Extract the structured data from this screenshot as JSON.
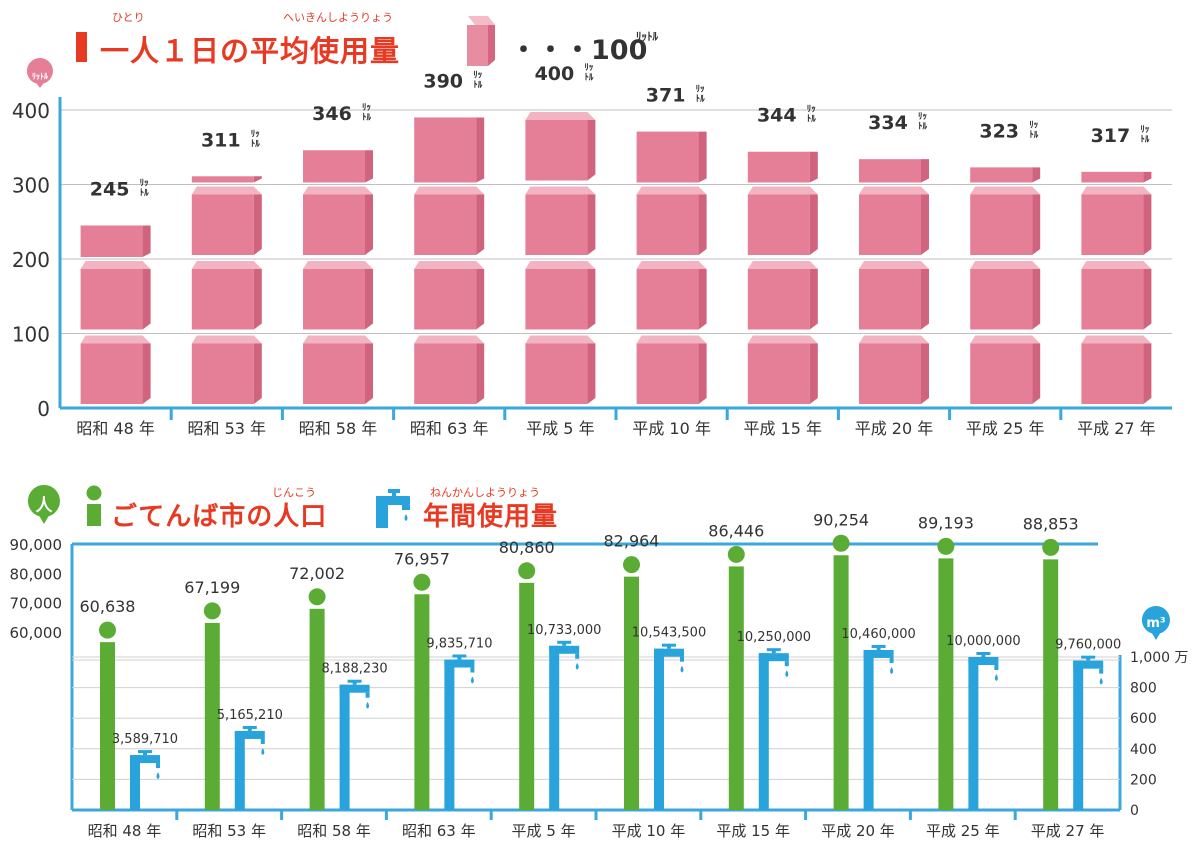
{
  "top": {
    "title": "一人１日の平均使用量",
    "ruby_hitori": "ひとり",
    "ruby_heikin": "へいきんしようりょう",
    "legend_text": "・・・100",
    "legend_unit": "ﾘｯﾄﾙ",
    "y_unit_badge": "ﾘｯﾄﾙ"
  },
  "bottom": {
    "pop_badge": "人",
    "pop_title": "ごてんば市の人口",
    "pop_ruby": "じんこう",
    "usage_title": "年間使用量",
    "usage_ruby": "ねんかんしようりょう",
    "right_unit_badge": "m³",
    "right_top_tick": "1,000 万"
  },
  "colors": {
    "accent_red": "#e83a22",
    "carton_pink": "#e57f97",
    "pop_green": "#5aac35",
    "usage_blue": "#29a3dc",
    "axis_blue": "#3aa8dc"
  },
  "chart_data": [
    {
      "type": "bar",
      "title": "一人１日の平均使用量",
      "ylabel": "ﾘｯﾄﾙ",
      "ylim": [
        0,
        400
      ],
      "yticks": [
        0,
        100,
        200,
        300,
        400
      ],
      "categories": [
        "昭和 48 年",
        "昭和 53 年",
        "昭和 58 年",
        "昭和 63 年",
        "平成 5 年",
        "平成 10 年",
        "平成 15 年",
        "平成 20 年",
        "平成 25 年",
        "平成 27 年"
      ],
      "values": [
        245,
        311,
        346,
        390,
        400,
        371,
        344,
        334,
        323,
        317
      ],
      "value_unit": "ﾘｯﾄﾙ",
      "legend": "1 carton = 100 ﾘｯﾄﾙ",
      "grid": true
    },
    {
      "type": "bar",
      "categories": [
        "昭和 48 年",
        "昭和 53 年",
        "昭和 58 年",
        "昭和 63 年",
        "平成 5 年",
        "平成 10 年",
        "平成 15 年",
        "平成 20 年",
        "平成 25 年",
        "平成 27 年"
      ],
      "left_ticks": [
        "60,000",
        "70,000",
        "80,000",
        "90,000"
      ],
      "right_ticks": [
        "0",
        "200",
        "400",
        "600",
        "800",
        "1,000 万"
      ],
      "series": [
        {
          "name": "ごてんば市の人口",
          "axis": "left",
          "values": [
            60638,
            67199,
            72002,
            76957,
            80860,
            82964,
            86446,
            90254,
            89193,
            88853
          ],
          "labels": [
            "60,638",
            "67,199",
            "72,002",
            "76,957",
            "80,860",
            "82,964",
            "86,446",
            "90,254",
            "89,193",
            "88,853"
          ]
        },
        {
          "name": "年間使用量",
          "axis": "right",
          "unit": "m³",
          "values": [
            3589710,
            5165210,
            8188230,
            9835710,
            10733000,
            10543500,
            10250000,
            10460000,
            10000000,
            9760000
          ],
          "labels": [
            "3,589,710",
            "5,165,210",
            "8,188,230",
            "9,835,710",
            "10,733,000",
            "10,543,500",
            "10,250,000",
            "10,460,000",
            "10,000,000",
            "9,760,000"
          ]
        }
      ],
      "grid": true
    }
  ]
}
